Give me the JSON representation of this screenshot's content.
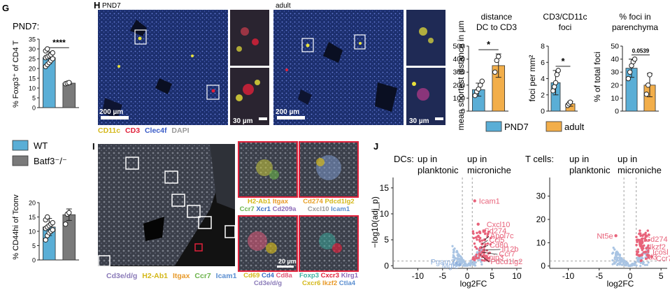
{
  "panel_letters": {
    "G": "G",
    "H": "H",
    "I": "I",
    "J": "J"
  },
  "colors": {
    "wt": "#5aaed6",
    "batf3": "#7a7a7a",
    "pnd7": "#5aaed6",
    "adult": "#f2ae4a",
    "up": "#e8627a",
    "ns": "#a9c4e3",
    "cd11c": "#e8e23a",
    "cd3": "#e0203a",
    "clec4f": "#3a5cc8",
    "dapi": "#9a9a9a"
  },
  "G": {
    "title": "PND7:",
    "top_ylabel": "% Foxp3⁺ of CD4 T",
    "top_ticks": [
      "0",
      "5",
      "10",
      "15",
      "20",
      "25",
      "30",
      "35"
    ],
    "top_sig": "****",
    "legend": {
      "wt": "WT",
      "batf3": "Batf3⁻/⁻"
    },
    "bottom_ylabel": "% CD44hi of Tconv",
    "bottom_ticks": [
      "0",
      "5",
      "10",
      "15",
      "20"
    ]
  },
  "H": {
    "left_title": "PND7",
    "right_title": "adult",
    "scale_big": "200 µm",
    "scale_small": "30 µm",
    "markers": [
      {
        "label": "CD11c",
        "color": "#e8e23a"
      },
      {
        "label": "CD3",
        "color": "#e0203a"
      },
      {
        "label": "Clec4f",
        "color": "#3a5cc8"
      },
      {
        "label": "DAPI",
        "color": "#9a9a9a"
      }
    ],
    "legend": {
      "pnd7": "PND7",
      "adult": "adult"
    }
  },
  "I": {
    "zoom_labels": [
      [
        {
          "t": "H2-Ab1",
          "c": "#d4b81a"
        },
        {
          "t": "Itgax",
          "c": "#e89a2a"
        }
      ],
      [
        {
          "t": "Ccr7",
          "c": "#6bb34a"
        },
        {
          "t": "Xcr1",
          "c": "#3a6fc8"
        },
        {
          "t": "Cd209a",
          "c": "#8c6ab8"
        }
      ],
      [
        {
          "t": "Cd274",
          "c": "#e8a028"
        },
        {
          "t": "Pdcd1lg2",
          "c": "#d4b81a"
        }
      ],
      [
        {
          "t": "Cxcl10",
          "c": "#9a9a9a"
        },
        {
          "t": "Icam1",
          "c": "#5a8ed0"
        }
      ],
      [
        {
          "t": "Cd69",
          "c": "#d4b81a"
        },
        {
          "t": "Cd4",
          "c": "#3a6fc8"
        },
        {
          "t": "Cd8a",
          "c": "#e05a78"
        }
      ],
      [
        {
          "t": "Cd3e/d/g",
          "c": "#8a7ab8"
        }
      ],
      [
        {
          "t": "Foxp3",
          "c": "#3ab0a0"
        },
        {
          "t": "Cxcr3",
          "c": "#e0203a"
        },
        {
          "t": "Klrg1",
          "c": "#8c6ab8"
        }
      ],
      [
        {
          "t": "Cxcr6",
          "c": "#d4b81a"
        },
        {
          "t": "Ikzf2",
          "c": "#e89a2a"
        },
        {
          "t": "Ctla4",
          "c": "#5a8ed0"
        }
      ]
    ],
    "main_labels": [
      {
        "t": "Cd3e/d/g",
        "c": "#8a7ab8"
      },
      {
        "t": "H2-Ab1",
        "c": "#d4b81a"
      },
      {
        "t": "Itgax",
        "c": "#e89a2a"
      },
      {
        "t": "Ccr7",
        "c": "#6bb34a"
      },
      {
        "t": "Icam1",
        "c": "#5a8ed0"
      }
    ],
    "scale": "20 µm"
  },
  "J": {
    "dcs_label": "DCs:",
    "tcells_label": "T cells:",
    "up_left": [
      "up in",
      "planktonic"
    ],
    "up_right": [
      "up in",
      "microniche"
    ],
    "ylabel": "−log10(adj_p)",
    "xlabel": "log2FC",
    "dc_genes_right": [
      "Icam1",
      "Cxcl10",
      "Cd274",
      "Apol7c",
      "Ccl5",
      "Cd80",
      "Il12b",
      "Ccr7",
      "Tnip3",
      "Pdcd1lg2"
    ],
    "dc_genes_left": [
      "Pgam2",
      "Mgl2"
    ],
    "t_genes_left": [
      "Nt5e"
    ],
    "t_genes_right": [
      "Cd274",
      "Ikzf2",
      "Icosl",
      "Id3",
      "Ccr7"
    ]
  },
  "chart_data": [
    {
      "type": "bar",
      "title": "PND7",
      "ylabel": "% Foxp3⁺ of CD4 T",
      "categories": [
        "WT",
        "Batf3⁻/⁻"
      ],
      "values": [
        25.5,
        12.5
      ],
      "errors": [
        3.0,
        0.6
      ],
      "ylim": [
        0,
        35
      ],
      "points": [
        [
          21,
          22,
          23,
          24,
          25,
          25.5,
          26,
          26.5,
          27,
          28,
          29,
          30
        ],
        [
          12.2,
          12.5,
          12.8
        ]
      ],
      "significance": "****"
    },
    {
      "type": "bar",
      "ylabel": "% CD44hi of Tconv",
      "categories": [
        "WT",
        "Batf3⁻/⁻"
      ],
      "values": [
        11.5,
        15.8
      ],
      "errors": [
        3.0,
        2.0
      ],
      "ylim": [
        0,
        20
      ],
      "points": [
        [
          7,
          8.5,
          9.5,
          10,
          10.5,
          11,
          11.5,
          12,
          12.5,
          13,
          14,
          15
        ],
        [
          12.5,
          16,
          16.5
        ]
      ]
    },
    {
      "type": "bar",
      "title": "distance DC to CD3",
      "ylabel": "mean shortest distance in µm",
      "categories": [
        "PND7",
        "adult"
      ],
      "values": [
        165,
        350
      ],
      "errors": [
        50,
        90
      ],
      "ylim": [
        0,
        500
      ],
      "ticks": [
        0,
        100,
        200,
        300,
        400,
        500
      ],
      "points": [
        [
          120,
          150,
          170,
          200,
          230
        ],
        [
          300,
          390,
          420
        ]
      ],
      "significance": "*"
    },
    {
      "type": "bar",
      "title": "CD3/CD11c foci",
      "ylabel": "foci per mm²",
      "categories": [
        "PND7",
        "adult"
      ],
      "values": [
        3.5,
        0.9
      ],
      "errors": [
        1.5,
        0.3
      ],
      "ylim": [
        0,
        8
      ],
      "ticks": [
        0,
        2,
        4,
        6,
        8
      ],
      "points": [
        [
          2.5,
          3.0,
          3.5,
          4.5,
          5.0
        ],
        [
          0.7,
          0.9,
          1.1
        ]
      ],
      "significance": "*"
    },
    {
      "type": "bar",
      "title": "% foci in parenchyma",
      "ylabel": "% of total foci",
      "categories": [
        "PND7",
        "adult"
      ],
      "values": [
        33,
        20
      ],
      "errors": [
        7,
        9
      ],
      "ylim": [
        0,
        50
      ],
      "ticks": [
        0,
        10,
        20,
        30,
        40,
        50
      ],
      "points": [
        [
          25,
          30,
          35,
          38,
          40
        ],
        [
          13,
          20,
          28
        ]
      ],
      "significance": "0.0539"
    },
    {
      "type": "scatter",
      "title": "DCs",
      "xlabel": "log2FC",
      "ylabel": "−log10(adj_p)",
      "xlim": [
        -15,
        11
      ],
      "ylim": [
        -0.5,
        17
      ],
      "xticks": [
        -10,
        -5,
        0,
        5,
        10
      ],
      "yticks": [
        0,
        5,
        10,
        15
      ],
      "labeled_points": [
        {
          "gene": "Icam1",
          "x": 1.5,
          "y": 12.5
        },
        {
          "gene": "Cxcl10",
          "x": 2.2,
          "y": 8.0
        },
        {
          "gene": "Cd274",
          "x": 2.5,
          "y": 6.5
        },
        {
          "gene": "Apol7c",
          "x": 3.5,
          "y": 5.0
        },
        {
          "gene": "Ccl5",
          "x": 3.0,
          "y": 4.2
        },
        {
          "gene": "Cd80",
          "x": 2.8,
          "y": 3.5
        },
        {
          "gene": "Il12b",
          "x": 3.3,
          "y": 3.0
        },
        {
          "gene": "Ccr7",
          "x": 3.0,
          "y": 2.6
        },
        {
          "gene": "Tnip3",
          "x": 2.6,
          "y": 2.2
        },
        {
          "gene": "Pdcd1lg2",
          "x": 3.0,
          "y": 1.8
        },
        {
          "gene": "Pgam2",
          "x": -2.2,
          "y": 0.5
        },
        {
          "gene": "Mgl2",
          "x": -1.5,
          "y": 0.2
        }
      ]
    },
    {
      "type": "scatter",
      "title": "T cells",
      "xlabel": "log2FC",
      "ylabel": "−log10(adj_p)",
      "xlim": [
        -13,
        6
      ],
      "ylim": [
        -1,
        38
      ],
      "xticks": [
        -10,
        -5,
        0,
        5
      ],
      "yticks": [
        0,
        10,
        20,
        30
      ],
      "labeled_points": [
        {
          "gene": "Nt5e",
          "x": -2.3,
          "y": 13.0
        },
        {
          "gene": "Cd274",
          "x": 1.5,
          "y": 11.0
        },
        {
          "gene": "Ikzf2",
          "x": 2.0,
          "y": 8.0
        },
        {
          "gene": "Icosl",
          "x": 2.5,
          "y": 6.0
        },
        {
          "gene": "Id3",
          "x": 1.5,
          "y": 4.5
        },
        {
          "gene": "Ccr7",
          "x": 3.5,
          "y": 4.0
        }
      ]
    }
  ]
}
